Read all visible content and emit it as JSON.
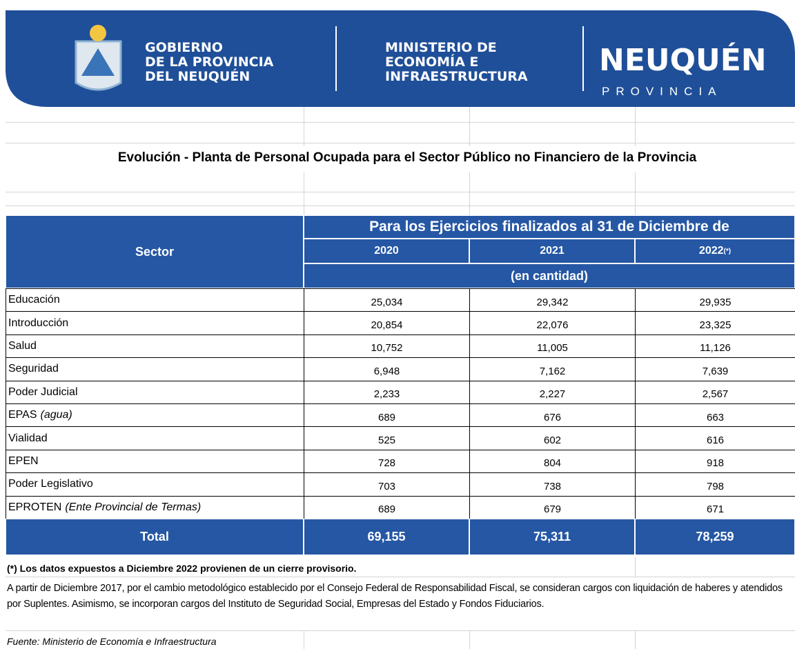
{
  "header": {
    "gob": [
      "GOBIERNO",
      "DE LA PROVINCIA",
      "DEL NEUQUÉN"
    ],
    "ministerio": [
      "MINISTERIO DE",
      "ECONOMÍA E",
      "INFRAESTRUCTURA"
    ],
    "brand": "NEUQUÉN",
    "brand_sub": "PROVINCIA"
  },
  "title": "Evolución - Planta de Personal Ocupada para el Sector Público no Financiero de la Provincia",
  "table": {
    "sector_header": "Sector",
    "period_header": "Para los Ejercicios finalizados al 31 de Diciembre de",
    "years": [
      {
        "year": "2020"
      },
      {
        "year": "2021"
      },
      {
        "year": "2022",
        "mark": "(*)"
      }
    ],
    "unit": "(en cantidad)",
    "rows": [
      {
        "sector": "Educación",
        "values": [
          "25,034",
          "29,342",
          "29,935"
        ]
      },
      {
        "sector": "Introducción",
        "values": [
          "20,854",
          "22,076",
          "23,325"
        ]
      },
      {
        "sector": "Salud",
        "values": [
          "10,752",
          "11,005",
          "11,126"
        ]
      },
      {
        "sector": "Seguridad",
        "values": [
          "6,948",
          "7,162",
          "7,639"
        ]
      },
      {
        "sector": "Poder Judicial",
        "values": [
          "2,233",
          "2,227",
          "2,567"
        ]
      },
      {
        "sector": "EPAS",
        "note": "(agua)",
        "values": [
          "689",
          "676",
          "663"
        ]
      },
      {
        "sector": "Vialidad",
        "values": [
          "525",
          "602",
          "616"
        ]
      },
      {
        "sector": "EPEN",
        "values": [
          "728",
          "804",
          "918"
        ]
      },
      {
        "sector": "Poder Legislativo",
        "values": [
          "703",
          "738",
          "798"
        ]
      },
      {
        "sector": "EPROTEN",
        "note": "(Ente Provincial de Termas)",
        "values": [
          "689",
          "679",
          "671"
        ]
      }
    ],
    "total": {
      "label": "Total",
      "values": [
        "69,155",
        "75,311",
        "78,259"
      ]
    }
  },
  "notes": {
    "provisional": "(*) Los datos expuestos a Diciembre 2022 provienen de un cierre provisorio.",
    "method": "A partir de Diciembre 2017, por el cambio metodológico establecido por el Consejo Federal de Responsabilidad Fiscal, se consideran cargos con liquidación de haberes y atendidos por Suplentes. Asimismo, se incorporan cargos del Instituto de Seguridad Social, Empresas del Estado y Fondos Fiduciarios.",
    "source": "Fuente: Ministerio de Economía e Infraestructura"
  }
}
